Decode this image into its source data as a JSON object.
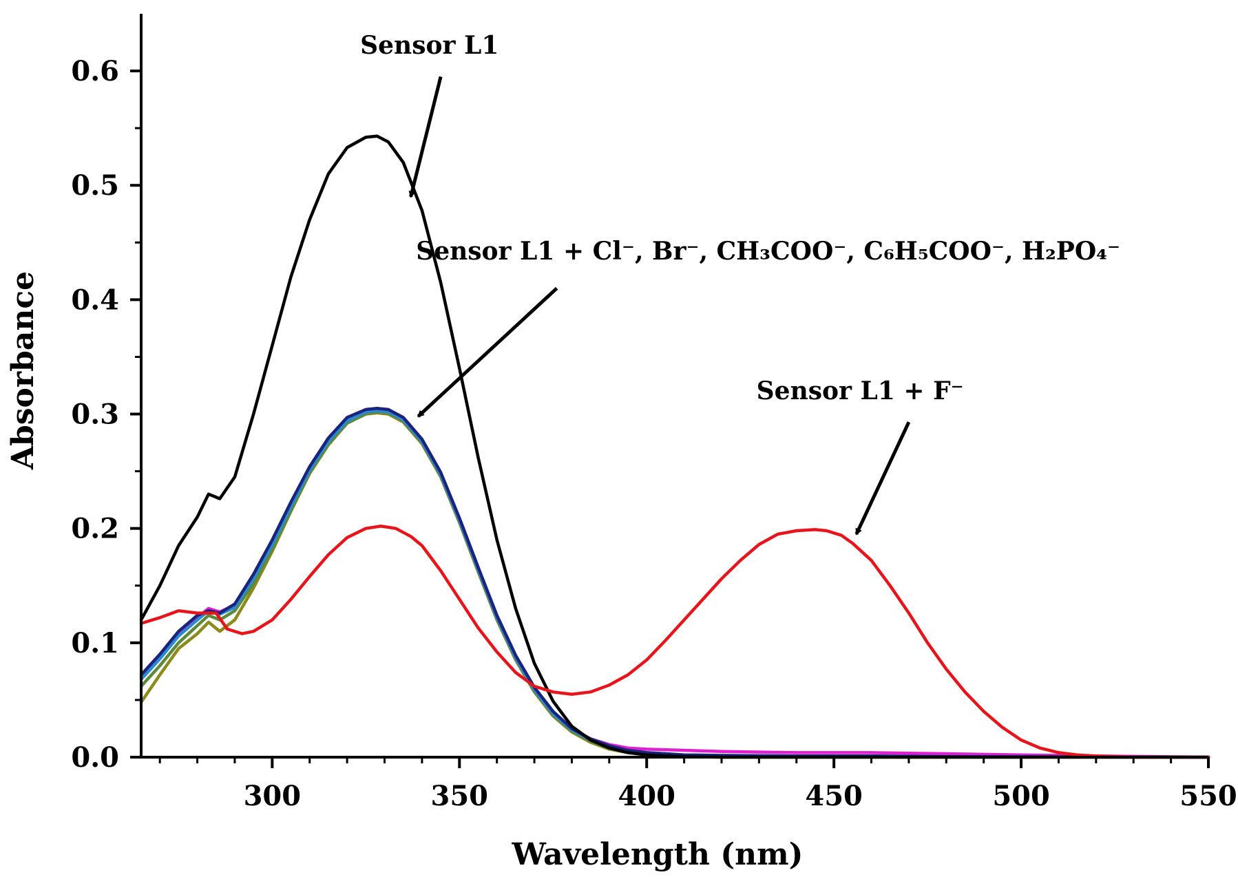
{
  "chart_data": {
    "type": "line",
    "xlabel": "Wavelength (nm)",
    "ylabel": "Absorbance",
    "xlim": [
      265,
      550
    ],
    "ylim": [
      0,
      0.65
    ],
    "xticks": [
      300,
      350,
      400,
      450,
      500,
      550
    ],
    "yticks": [
      0.0,
      0.1,
      0.2,
      0.3,
      0.4,
      0.5,
      0.6
    ],
    "xtick_labels": [
      "300",
      "350",
      "400",
      "450",
      "500",
      "550"
    ],
    "ytick_labels": [
      "0.0",
      "0.1",
      "0.2",
      "0.3",
      "0.4",
      "0.5",
      "0.6"
    ],
    "series": [
      {
        "name": "Sensor L1 + Cl⁻ (olive)",
        "color": "#8B8B1A",
        "x": [
          265,
          270,
          275,
          280,
          283,
          286,
          290,
          295,
          300,
          305,
          310,
          315,
          320,
          325,
          328,
          331,
          335,
          340,
          345,
          350,
          355,
          360,
          365,
          370,
          375,
          380,
          385,
          390,
          395,
          400,
          405,
          410,
          420,
          440,
          460,
          480,
          500,
          520,
          550
        ],
        "y": [
          0.048,
          0.072,
          0.095,
          0.108,
          0.118,
          0.11,
          0.12,
          0.148,
          0.18,
          0.215,
          0.248,
          0.273,
          0.292,
          0.3,
          0.301,
          0.3,
          0.293,
          0.274,
          0.245,
          0.205,
          0.162,
          0.12,
          0.085,
          0.057,
          0.036,
          0.022,
          0.013,
          0.007,
          0.004,
          0.002,
          0.001,
          0.0005,
          0.0,
          0.0,
          0.0,
          0.0,
          0.0,
          0.0,
          0.0
        ]
      },
      {
        "name": "Sensor L1 + Br⁻ (green)",
        "color": "#5a8a3a",
        "x": [
          265,
          270,
          275,
          280,
          283,
          286,
          290,
          295,
          300,
          305,
          310,
          315,
          320,
          325,
          328,
          331,
          335,
          340,
          345,
          350,
          355,
          360,
          365,
          370,
          375,
          380,
          385,
          390,
          395,
          400,
          405,
          410,
          420,
          440,
          460,
          480,
          500,
          520,
          550
        ],
        "y": [
          0.062,
          0.08,
          0.1,
          0.115,
          0.124,
          0.12,
          0.128,
          0.152,
          0.182,
          0.216,
          0.249,
          0.274,
          0.292,
          0.3,
          0.302,
          0.301,
          0.294,
          0.275,
          0.246,
          0.206,
          0.163,
          0.121,
          0.086,
          0.058,
          0.037,
          0.023,
          0.014,
          0.008,
          0.005,
          0.003,
          0.002,
          0.0015,
          0.001,
          0.0008,
          0.0005,
          0.0003,
          0.0002,
          0.0001,
          0.0
        ]
      },
      {
        "name": "Sensor L1 + CH₃COO⁻ (magenta)",
        "color": "#e020d0",
        "x": [
          265,
          270,
          275,
          280,
          283,
          286,
          290,
          295,
          300,
          305,
          310,
          315,
          320,
          325,
          328,
          331,
          335,
          340,
          345,
          350,
          355,
          360,
          365,
          370,
          375,
          380,
          385,
          390,
          395,
          400,
          410,
          420,
          440,
          460,
          480,
          500,
          520,
          550
        ],
        "y": [
          0.07,
          0.088,
          0.108,
          0.122,
          0.13,
          0.127,
          0.133,
          0.158,
          0.188,
          0.221,
          0.252,
          0.277,
          0.294,
          0.302,
          0.303,
          0.302,
          0.295,
          0.276,
          0.247,
          0.207,
          0.164,
          0.122,
          0.087,
          0.059,
          0.038,
          0.024,
          0.016,
          0.011,
          0.008,
          0.007,
          0.006,
          0.005,
          0.004,
          0.004,
          0.003,
          0.002,
          0.001,
          0.0
        ]
      },
      {
        "name": "Sensor L1 + C₆H₅COO⁻ (light blue)",
        "color": "#2a8ad0",
        "x": [
          265,
          270,
          275,
          280,
          283,
          286,
          290,
          295,
          300,
          305,
          310,
          315,
          320,
          325,
          328,
          331,
          335,
          340,
          345,
          350,
          355,
          360,
          365,
          370,
          375,
          380,
          385,
          390,
          395,
          400,
          405,
          410,
          420,
          440,
          460,
          480,
          500,
          520,
          550
        ],
        "y": [
          0.068,
          0.086,
          0.106,
          0.12,
          0.128,
          0.125,
          0.131,
          0.156,
          0.186,
          0.219,
          0.251,
          0.276,
          0.294,
          0.302,
          0.303,
          0.302,
          0.295,
          0.276,
          0.247,
          0.207,
          0.164,
          0.122,
          0.087,
          0.059,
          0.038,
          0.024,
          0.015,
          0.009,
          0.006,
          0.004,
          0.003,
          0.002,
          0.0015,
          0.001,
          0.001,
          0.0005,
          0.0003,
          0.0001,
          0.0
        ]
      },
      {
        "name": "Sensor L1 + H₂PO₄⁻ (dark blue)",
        "color": "#1a237e",
        "x": [
          265,
          270,
          275,
          280,
          283,
          286,
          290,
          295,
          300,
          305,
          310,
          315,
          320,
          325,
          328,
          331,
          335,
          340,
          345,
          350,
          355,
          360,
          365,
          370,
          375,
          380,
          385,
          390,
          395,
          400,
          405,
          410,
          420,
          440,
          460,
          480,
          500,
          520,
          550
        ],
        "y": [
          0.072,
          0.09,
          0.11,
          0.124,
          0.128,
          0.126,
          0.134,
          0.16,
          0.19,
          0.223,
          0.254,
          0.279,
          0.297,
          0.304,
          0.305,
          0.304,
          0.297,
          0.278,
          0.249,
          0.209,
          0.166,
          0.124,
          0.089,
          0.061,
          0.04,
          0.025,
          0.016,
          0.01,
          0.006,
          0.004,
          0.003,
          0.002,
          0.0015,
          0.001,
          0.001,
          0.0005,
          0.0003,
          0.0001,
          0.0
        ]
      },
      {
        "name": "Sensor L1",
        "color": "#000000",
        "x": [
          265,
          270,
          275,
          280,
          283,
          286,
          290,
          295,
          300,
          305,
          310,
          315,
          320,
          325,
          328,
          331,
          335,
          340,
          345,
          350,
          355,
          360,
          365,
          370,
          375,
          380,
          385,
          390,
          395,
          400,
          405,
          410,
          420,
          440,
          460,
          480,
          500,
          520,
          550
        ],
        "y": [
          0.12,
          0.15,
          0.185,
          0.21,
          0.23,
          0.226,
          0.245,
          0.3,
          0.36,
          0.42,
          0.47,
          0.51,
          0.533,
          0.542,
          0.543,
          0.538,
          0.52,
          0.478,
          0.415,
          0.34,
          0.262,
          0.19,
          0.13,
          0.082,
          0.049,
          0.027,
          0.015,
          0.008,
          0.004,
          0.002,
          0.001,
          0.0005,
          0.0,
          0.0,
          0.0,
          0.0,
          0.0,
          0.0,
          0.0
        ]
      },
      {
        "name": "Sensor L1 + F⁻",
        "color": "#e8141c",
        "x": [
          265,
          270,
          275,
          280,
          285,
          288,
          292,
          295,
          300,
          305,
          310,
          315,
          320,
          325,
          329,
          333,
          337,
          340,
          345,
          350,
          355,
          360,
          365,
          370,
          375,
          380,
          385,
          390,
          395,
          400,
          405,
          410,
          415,
          420,
          425,
          430,
          435,
          440,
          445,
          448,
          452,
          455,
          460,
          465,
          470,
          475,
          480,
          485,
          490,
          495,
          500,
          505,
          510,
          515,
          520,
          530,
          550
        ],
        "y": [
          0.117,
          0.122,
          0.128,
          0.126,
          0.126,
          0.112,
          0.108,
          0.11,
          0.12,
          0.138,
          0.158,
          0.177,
          0.192,
          0.2,
          0.202,
          0.2,
          0.193,
          0.185,
          0.163,
          0.138,
          0.113,
          0.092,
          0.074,
          0.062,
          0.057,
          0.055,
          0.057,
          0.063,
          0.072,
          0.085,
          0.102,
          0.12,
          0.138,
          0.156,
          0.172,
          0.186,
          0.195,
          0.198,
          0.199,
          0.198,
          0.194,
          0.187,
          0.172,
          0.15,
          0.126,
          0.1,
          0.077,
          0.057,
          0.04,
          0.026,
          0.015,
          0.008,
          0.004,
          0.002,
          0.001,
          0.0,
          0.0
        ]
      }
    ],
    "annotations": [
      {
        "id": "a1",
        "text": "Sensor L1",
        "x": 352,
        "y": 0.615,
        "arrow_from": [
          345,
          0.595
        ],
        "arrow_to": [
          337,
          0.49
        ]
      },
      {
        "id": "a2",
        "text": "Sensor L1 + Cl⁻, Br⁻, CH₃COO⁻, C₆H₅COO⁻, H₂PO₄⁻",
        "x": 400,
        "y": 0.435,
        "arrow_from": [
          376,
          0.41
        ],
        "arrow_to": [
          339,
          0.298
        ]
      },
      {
        "id": "a3",
        "text": "Sensor L1 + F⁻",
        "x": 490,
        "y": 0.313,
        "arrow_from": [
          470,
          0.293
        ],
        "arrow_to": [
          456,
          0.195
        ]
      }
    ]
  }
}
